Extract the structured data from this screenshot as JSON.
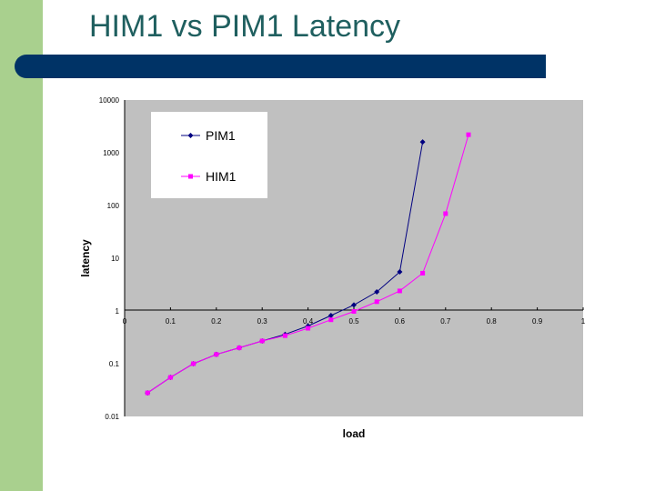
{
  "slide": {
    "title": "HIM1 vs PIM1 Latency"
  },
  "chart_data": {
    "type": "line",
    "xlabel": "load",
    "ylabel": "latency",
    "y_scale": "log",
    "xlim": [
      0,
      1
    ],
    "ylim": [
      0.01,
      10000
    ],
    "x_ticks": [
      "0",
      "0.1",
      "0.2",
      "0.3",
      "0.4",
      "0.5",
      "0.6",
      "0.7",
      "0.8",
      "0.9",
      "1"
    ],
    "y_ticks": [
      "10000",
      "1000",
      "100",
      "10",
      "1",
      "0.1",
      "0.01"
    ],
    "y_tick_values": [
      10000,
      1000,
      100,
      10,
      1,
      0.1,
      0.01
    ],
    "plot_background": "#c0c0c0",
    "grid": false,
    "legend_position": "top-left",
    "series": [
      {
        "name": "PIM1",
        "color": "#000080",
        "marker": "diamond",
        "points": [
          [
            0.05,
            0.028
          ],
          [
            0.1,
            0.055
          ],
          [
            0.15,
            0.1
          ],
          [
            0.2,
            0.15
          ],
          [
            0.25,
            0.2
          ],
          [
            0.3,
            0.27
          ],
          [
            0.35,
            0.36
          ],
          [
            0.4,
            0.52
          ],
          [
            0.45,
            0.82
          ],
          [
            0.5,
            1.3
          ],
          [
            0.55,
            2.3
          ],
          [
            0.6,
            5.5
          ],
          [
            0.65,
            1600
          ]
        ]
      },
      {
        "name": "HIM1",
        "color": "#ff00ff",
        "marker": "square",
        "points": [
          [
            0.05,
            0.028
          ],
          [
            0.1,
            0.055
          ],
          [
            0.15,
            0.1
          ],
          [
            0.2,
            0.15
          ],
          [
            0.25,
            0.2
          ],
          [
            0.3,
            0.27
          ],
          [
            0.35,
            0.34
          ],
          [
            0.4,
            0.47
          ],
          [
            0.45,
            0.68
          ],
          [
            0.5,
            0.98
          ],
          [
            0.55,
            1.5
          ],
          [
            0.6,
            2.4
          ],
          [
            0.65,
            5.2
          ],
          [
            0.7,
            70
          ],
          [
            0.75,
            2200
          ]
        ]
      }
    ]
  }
}
